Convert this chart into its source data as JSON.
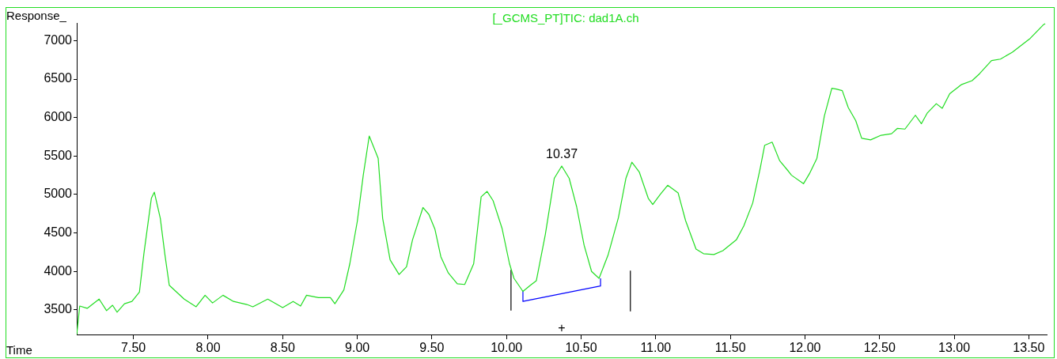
{
  "chart_data": {
    "type": "line",
    "title": "[_GCMS_PT]TIC: dad1A.ch",
    "xlabel": "Time",
    "ylabel": "Response_",
    "xlim": [
      7.12,
      13.62
    ],
    "ylim": [
      3180,
      7230
    ],
    "xticks": [
      {
        "value": 7.5,
        "label": "7.50"
      },
      {
        "value": 8,
        "label": "8.00"
      },
      {
        "value": 8.5,
        "label": "8.50"
      },
      {
        "value": 9,
        "label": "9.00"
      },
      {
        "value": 9.5,
        "label": "9.50"
      },
      {
        "value": 10,
        "label": "10.00"
      },
      {
        "value": 10.5,
        "label": "10.50"
      },
      {
        "value": 11,
        "label": "11.00"
      },
      {
        "value": 11.5,
        "label": "11.50"
      },
      {
        "value": 12,
        "label": "12.00"
      },
      {
        "value": 12.5,
        "label": "12.50"
      },
      {
        "value": 13,
        "label": "13.00"
      },
      {
        "value": 13.5,
        "label": "13.50"
      }
    ],
    "yticks": [
      3500,
      4000,
      4500,
      5000,
      5500,
      6000,
      6500,
      7000
    ],
    "grid": false,
    "legend": false,
    "marker": "none",
    "line_style": "solid",
    "annotations": [
      {
        "text": "10.37",
        "x": 10.37,
        "y": 5369
      },
      "+"
    ],
    "series": [
      {
        "color": "#22dd22",
        "x": [
          7.12,
          7.14,
          7.19,
          7.27,
          7.32,
          7.36,
          7.39,
          7.44,
          7.49,
          7.54,
          7.57,
          7.62,
          7.64,
          7.68,
          7.71,
          7.74,
          7.79,
          7.84,
          7.92,
          7.98,
          8.03,
          8.1,
          8.17,
          8.26,
          8.3,
          8.4,
          8.5,
          8.57,
          8.62,
          8.66,
          8.74,
          8.82,
          8.85,
          8.91,
          8.95,
          9.0,
          9.04,
          9.08,
          9.14,
          9.17,
          9.22,
          9.28,
          9.33,
          9.37,
          9.44,
          9.48,
          9.52,
          9.56,
          9.61,
          9.67,
          9.72,
          9.78,
          9.83,
          9.87,
          9.91,
          9.97,
          10.02,
          10.05,
          10.11,
          10.16,
          10.2,
          10.26,
          10.32,
          10.37,
          10.42,
          10.47,
          10.52,
          10.57,
          10.62,
          10.68,
          10.75,
          10.8,
          10.84,
          10.89,
          10.95,
          10.98,
          11.03,
          11.08,
          11.15,
          11.2,
          11.27,
          11.32,
          11.39,
          11.45,
          11.54,
          11.59,
          11.65,
          11.7,
          11.73,
          11.78,
          11.83,
          11.89,
          11.91,
          11.99,
          12.03,
          12.08,
          12.13,
          12.18,
          12.21,
          12.25,
          12.29,
          12.34,
          12.38,
          12.44,
          12.51,
          12.58,
          12.62,
          12.67,
          12.74,
          12.78,
          12.82,
          12.88,
          12.92,
          12.97,
          13.05,
          13.12,
          13.17,
          13.25,
          13.31,
          13.39,
          13.45,
          13.51,
          13.6,
          13.61
        ],
        "values": [
          3180,
          3550,
          3520,
          3640,
          3490,
          3560,
          3470,
          3580,
          3610,
          3730,
          4230,
          4950,
          5030,
          4690,
          4230,
          3820,
          3730,
          3640,
          3540,
          3690,
          3590,
          3690,
          3610,
          3570,
          3540,
          3640,
          3530,
          3610,
          3550,
          3690,
          3660,
          3660,
          3580,
          3760,
          4100,
          4650,
          5250,
          5760,
          5470,
          4690,
          4150,
          3960,
          4060,
          4410,
          4830,
          4740,
          4550,
          4190,
          3980,
          3840,
          3830,
          4100,
          4970,
          5040,
          4920,
          4560,
          4100,
          3910,
          3740,
          3820,
          3880,
          4480,
          5210,
          5370,
          5210,
          4840,
          4340,
          4000,
          3910,
          4210,
          4700,
          5210,
          5420,
          5290,
          4950,
          4870,
          5000,
          5120,
          5020,
          4660,
          4290,
          4230,
          4220,
          4270,
          4410,
          4590,
          4890,
          5340,
          5640,
          5680,
          5440,
          5300,
          5250,
          5140,
          5270,
          5470,
          6020,
          6380,
          6370,
          6350,
          6130,
          5960,
          5730,
          5710,
          5770,
          5790,
          5860,
          5850,
          6030,
          5920,
          6060,
          6180,
          6120,
          6310,
          6430,
          6480,
          6570,
          6740,
          6760,
          6850,
          6940,
          7030,
          7210,
          7220
        ]
      },
      {
        "color": "#0000ff",
        "x": [
          10.11,
          10.11,
          10.63,
          10.63
        ],
        "values": [
          3740,
          3610,
          3810,
          3910
        ]
      },
      {
        "color": "#000000",
        "x": [
          10.03,
          10.03
        ],
        "values": [
          3490,
          4020
        ]
      },
      {
        "color": "#000000",
        "x": [
          10.83,
          10.83
        ],
        "values": [
          3480,
          4010
        ]
      }
    ]
  }
}
